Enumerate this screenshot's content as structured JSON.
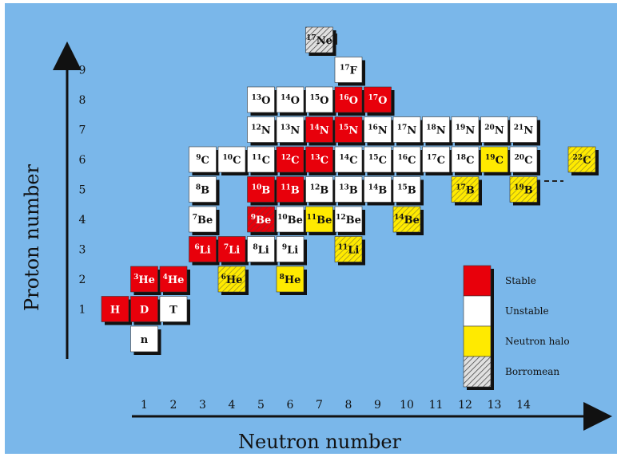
{
  "x_axis": {
    "label": "Neutron number",
    "ticks": [
      "1",
      "2",
      "3",
      "4",
      "5",
      "6",
      "7",
      "8",
      "9",
      "10",
      "11",
      "12",
      "13",
      "14"
    ]
  },
  "y_axis": {
    "label": "Proton number",
    "ticks": [
      "1",
      "2",
      "3",
      "4",
      "5",
      "6",
      "7",
      "8",
      "9"
    ]
  },
  "colors": {
    "background": "#7ab7ea",
    "stable": "#e8000b",
    "unstable": "#ffffff",
    "halo": "#ffea00",
    "borromean": "#e0e0e0",
    "shadow": "#111111"
  },
  "legend": [
    {
      "type": "stable",
      "label": "Stable"
    },
    {
      "type": "unstable",
      "label": "Unstable"
    },
    {
      "type": "halo",
      "label": "Neutron halo"
    },
    {
      "type": "borromean",
      "label": "Borromean"
    }
  ],
  "nuclides": [
    {
      "n": 1,
      "z": 0,
      "mass": "",
      "sym": "n",
      "type": "unstable"
    },
    {
      "n": 0,
      "z": 1,
      "mass": "",
      "sym": "H",
      "type": "stable"
    },
    {
      "n": 1,
      "z": 1,
      "mass": "",
      "sym": "D",
      "type": "stable"
    },
    {
      "n": 2,
      "z": 1,
      "mass": "",
      "sym": "T",
      "type": "unstable"
    },
    {
      "n": 1,
      "z": 2,
      "mass": "3",
      "sym": "He",
      "type": "stable"
    },
    {
      "n": 2,
      "z": 2,
      "mass": "4",
      "sym": "He",
      "type": "stable"
    },
    {
      "n": 4,
      "z": 2,
      "mass": "6",
      "sym": "He",
      "type": "halo",
      "borromean": true
    },
    {
      "n": 6,
      "z": 2,
      "mass": "8",
      "sym": "He",
      "type": "halo"
    },
    {
      "n": 3,
      "z": 3,
      "mass": "6",
      "sym": "Li",
      "type": "stable"
    },
    {
      "n": 4,
      "z": 3,
      "mass": "7",
      "sym": "Li",
      "type": "stable"
    },
    {
      "n": 5,
      "z": 3,
      "mass": "8",
      "sym": "Li",
      "type": "unstable"
    },
    {
      "n": 6,
      "z": 3,
      "mass": "9",
      "sym": "Li",
      "type": "unstable"
    },
    {
      "n": 8,
      "z": 3,
      "mass": "11",
      "sym": "Li",
      "type": "halo",
      "borromean": true
    },
    {
      "n": 3,
      "z": 4,
      "mass": "7",
      "sym": "Be",
      "type": "unstable"
    },
    {
      "n": 5,
      "z": 4,
      "mass": "9",
      "sym": "Be",
      "type": "stable",
      "borromean": true
    },
    {
      "n": 6,
      "z": 4,
      "mass": "10",
      "sym": "Be",
      "type": "unstable"
    },
    {
      "n": 7,
      "z": 4,
      "mass": "11",
      "sym": "Be",
      "type": "halo"
    },
    {
      "n": 8,
      "z": 4,
      "mass": "12",
      "sym": "Be",
      "type": "unstable"
    },
    {
      "n": 10,
      "z": 4,
      "mass": "14",
      "sym": "Be",
      "type": "halo",
      "borromean": true
    },
    {
      "n": 3,
      "z": 5,
      "mass": "8",
      "sym": "B",
      "type": "unstable"
    },
    {
      "n": 5,
      "z": 5,
      "mass": "10",
      "sym": "B",
      "type": "stable"
    },
    {
      "n": 6,
      "z": 5,
      "mass": "11",
      "sym": "B",
      "type": "stable"
    },
    {
      "n": 7,
      "z": 5,
      "mass": "12",
      "sym": "B",
      "type": "unstable"
    },
    {
      "n": 8,
      "z": 5,
      "mass": "13",
      "sym": "B",
      "type": "unstable"
    },
    {
      "n": 9,
      "z": 5,
      "mass": "14",
      "sym": "B",
      "type": "unstable"
    },
    {
      "n": 10,
      "z": 5,
      "mass": "15",
      "sym": "B",
      "type": "unstable"
    },
    {
      "n": 12,
      "z": 5,
      "mass": "17",
      "sym": "B",
      "type": "halo",
      "borromean": true
    },
    {
      "n": 14,
      "z": 5,
      "mass": "19",
      "sym": "B",
      "type": "halo",
      "borromean": true
    },
    {
      "n": 3,
      "z": 6,
      "mass": "9",
      "sym": "C",
      "type": "unstable"
    },
    {
      "n": 4,
      "z": 6,
      "mass": "10",
      "sym": "C",
      "type": "unstable"
    },
    {
      "n": 5,
      "z": 6,
      "mass": "11",
      "sym": "C",
      "type": "unstable"
    },
    {
      "n": 6,
      "z": 6,
      "mass": "12",
      "sym": "C",
      "type": "stable"
    },
    {
      "n": 7,
      "z": 6,
      "mass": "13",
      "sym": "C",
      "type": "stable"
    },
    {
      "n": 8,
      "z": 6,
      "mass": "14",
      "sym": "C",
      "type": "unstable"
    },
    {
      "n": 9,
      "z": 6,
      "mass": "15",
      "sym": "C",
      "type": "unstable"
    },
    {
      "n": 10,
      "z": 6,
      "mass": "16",
      "sym": "C",
      "type": "unstable"
    },
    {
      "n": 11,
      "z": 6,
      "mass": "17",
      "sym": "C",
      "type": "unstable"
    },
    {
      "n": 12,
      "z": 6,
      "mass": "18",
      "sym": "C",
      "type": "unstable"
    },
    {
      "n": 13,
      "z": 6,
      "mass": "19",
      "sym": "C",
      "type": "halo"
    },
    {
      "n": 14,
      "z": 6,
      "mass": "20",
      "sym": "C",
      "type": "unstable"
    },
    {
      "n": 16,
      "z": 6,
      "mass": "22",
      "sym": "C",
      "type": "halo",
      "borromean": true
    },
    {
      "n": 5,
      "z": 7,
      "mass": "12",
      "sym": "N",
      "type": "unstable"
    },
    {
      "n": 6,
      "z": 7,
      "mass": "13",
      "sym": "N",
      "type": "unstable"
    },
    {
      "n": 7,
      "z": 7,
      "mass": "14",
      "sym": "N",
      "type": "stable"
    },
    {
      "n": 8,
      "z": 7,
      "mass": "15",
      "sym": "N",
      "type": "stable"
    },
    {
      "n": 9,
      "z": 7,
      "mass": "16",
      "sym": "N",
      "type": "unstable"
    },
    {
      "n": 10,
      "z": 7,
      "mass": "17",
      "sym": "N",
      "type": "unstable"
    },
    {
      "n": 11,
      "z": 7,
      "mass": "18",
      "sym": "N",
      "type": "unstable"
    },
    {
      "n": 12,
      "z": 7,
      "mass": "19",
      "sym": "N",
      "type": "unstable"
    },
    {
      "n": 13,
      "z": 7,
      "mass": "20",
      "sym": "N",
      "type": "unstable"
    },
    {
      "n": 14,
      "z": 7,
      "mass": "21",
      "sym": "N",
      "type": "unstable"
    },
    {
      "n": 5,
      "z": 8,
      "mass": "13",
      "sym": "O",
      "type": "unstable"
    },
    {
      "n": 6,
      "z": 8,
      "mass": "14",
      "sym": "O",
      "type": "unstable"
    },
    {
      "n": 7,
      "z": 8,
      "mass": "15",
      "sym": "O",
      "type": "unstable"
    },
    {
      "n": 8,
      "z": 8,
      "mass": "16",
      "sym": "O",
      "type": "stable"
    },
    {
      "n": 9,
      "z": 8,
      "mass": "17",
      "sym": "O",
      "type": "stable"
    },
    {
      "n": 8,
      "z": 9,
      "mass": "17",
      "sym": "F",
      "type": "unstable"
    },
    {
      "n": 7,
      "z": 10,
      "mass": "17",
      "sym": "Ne",
      "type": "borromean"
    }
  ]
}
